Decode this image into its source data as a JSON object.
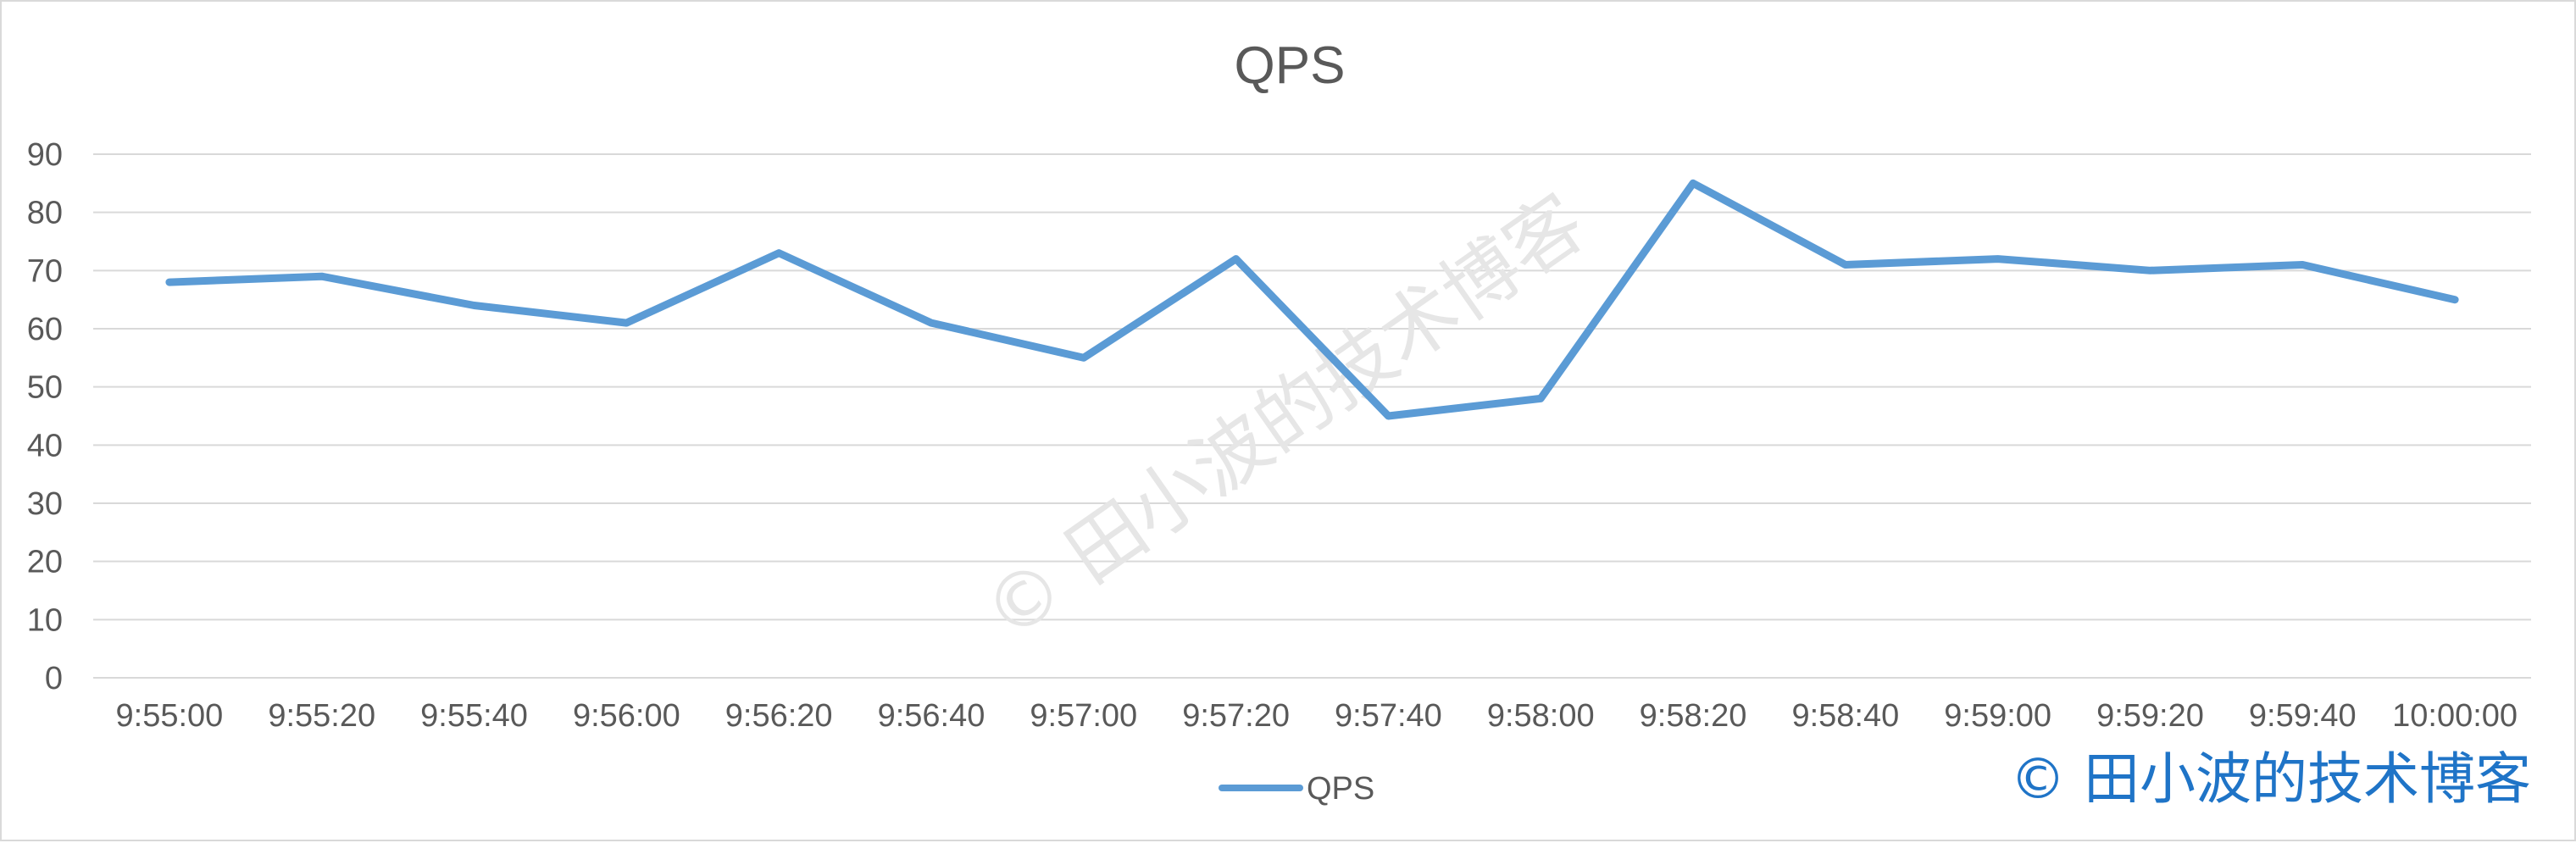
{
  "chart_data": {
    "type": "line",
    "title": "QPS",
    "xlabel": "",
    "ylabel": "",
    "categories": [
      "9:55:00",
      "9:55:20",
      "9:55:40",
      "9:56:00",
      "9:56:20",
      "9:56:40",
      "9:57:00",
      "9:57:20",
      "9:57:40",
      "9:58:00",
      "9:58:20",
      "9:58:40",
      "9:59:00",
      "9:59:20",
      "9:59:40",
      "10:00:00"
    ],
    "series": [
      {
        "name": "QPS",
        "values": [
          68,
          69,
          64,
          61,
          73,
          61,
          55,
          72,
          45,
          48,
          85,
          71,
          72,
          70,
          71,
          65
        ]
      }
    ],
    "ylim": [
      0,
      90
    ],
    "yticks": [
      0,
      10,
      20,
      30,
      40,
      50,
      60,
      70,
      80,
      90
    ],
    "grid": true,
    "legend": "bottom-center",
    "colors": {
      "series": "#5b9bd5",
      "grid": "#d9d9d9",
      "text": "#595959"
    }
  },
  "watermark": {
    "text": "© 田小波的技术博客",
    "color": "#1f74c7"
  }
}
